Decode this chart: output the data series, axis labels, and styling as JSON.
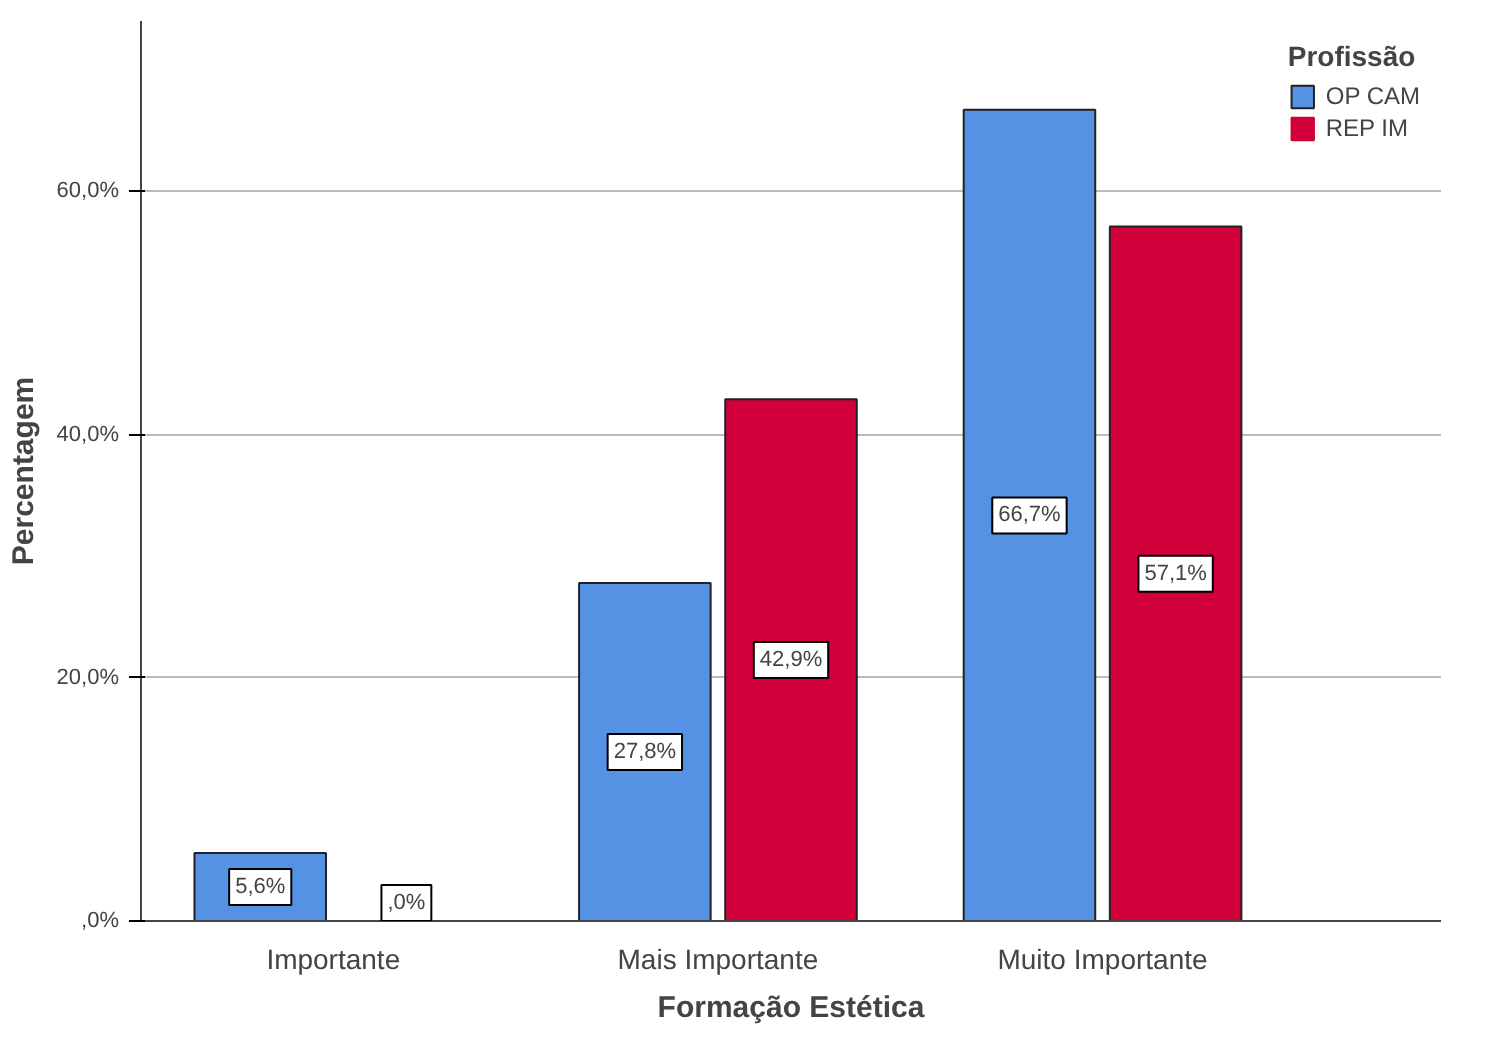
{
  "chart_data": {
    "type": "bar",
    "xlabel": "Formação Estética",
    "ylabel": "Percentagem",
    "legend_title": "Profissão",
    "categories": [
      "Importante",
      "Mais Importante",
      "Muito Importante"
    ],
    "series": [
      {
        "name": "OP CAM",
        "color": "#5592e3",
        "values": [
          5.6,
          27.8,
          66.7
        ],
        "value_labels": [
          "5,6%",
          "27,8%",
          "66,7%"
        ]
      },
      {
        "name": "REP IM",
        "color": "#d2003a",
        "values": [
          0,
          42.9,
          57.1
        ],
        "value_labels": [
          ",0%",
          "42,9%",
          "57,1%"
        ]
      }
    ],
    "ylim": [
      0,
      74
    ],
    "yticks": [
      {
        "value": 0,
        "label": ",0%"
      },
      {
        "value": 20,
        "label": "20,0%"
      },
      {
        "value": 40,
        "label": "40,0%"
      },
      {
        "value": 60,
        "label": "60,0%"
      }
    ],
    "grid": "y",
    "legend": "right"
  }
}
